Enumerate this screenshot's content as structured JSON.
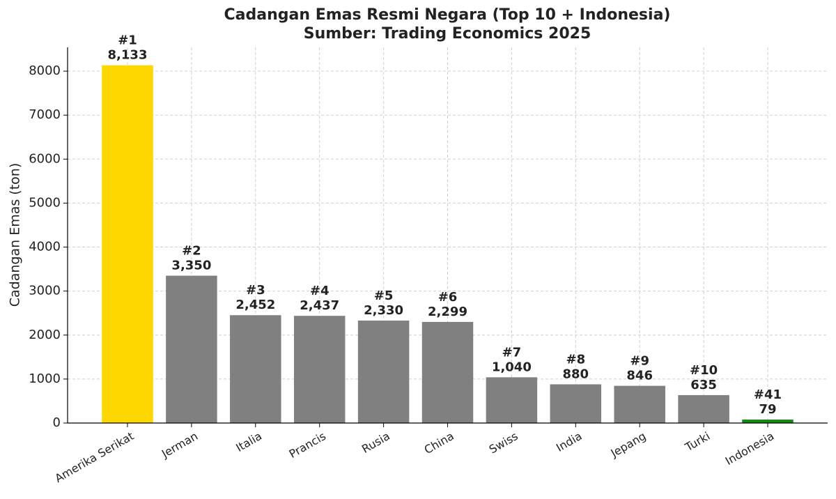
{
  "chart_data": {
    "type": "bar",
    "title": "Cadangan Emas Resmi Negara (Top 10 + Indonesia)",
    "subtitle": "Sumber: Trading Economics 2025",
    "y_label": "Cadangan Emas (ton)",
    "categories": [
      "Amerika Serikat",
      "Jerman",
      "Italia",
      "Prancis",
      "Rusia",
      "China",
      "Swiss",
      "India",
      "Jepang",
      "Turki",
      "Indonesia"
    ],
    "values": [
      8133,
      3350,
      2452,
      2437,
      2330,
      2299,
      1040,
      880,
      846,
      635,
      79
    ],
    "value_labels": [
      "8,133",
      "3,350",
      "2,452",
      "2,437",
      "2,330",
      "2,299",
      "1,040",
      "880",
      "846",
      "635",
      "79"
    ],
    "rank_labels": [
      "#1",
      "#2",
      "#3",
      "#4",
      "#5",
      "#6",
      "#7",
      "#8",
      "#9",
      "#10",
      "#41"
    ],
    "colors": [
      "#ffd700",
      "#808080",
      "#808080",
      "#808080",
      "#808080",
      "#808080",
      "#808080",
      "#808080",
      "#808080",
      "#808080",
      "#138a13"
    ],
    "ylim": [
      0,
      8540
    ],
    "yticks": [
      0,
      1000,
      2000,
      3000,
      4000,
      5000,
      6000,
      7000,
      8000
    ],
    "grid": true
  }
}
